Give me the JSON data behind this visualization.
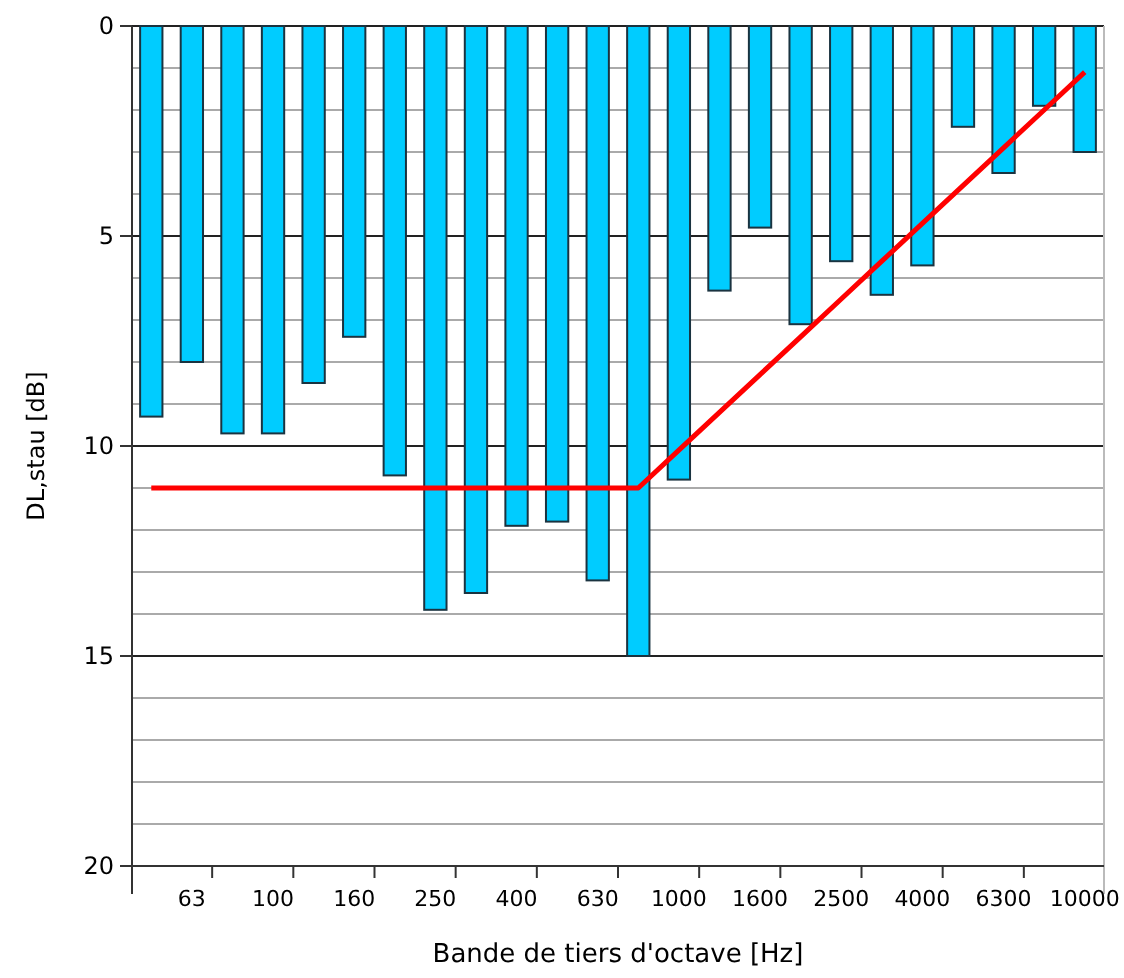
{
  "chart_data": {
    "type": "bar",
    "xlabel": "Bande de tiers d'octave [Hz]",
    "ylabel": "DL,stau [dB]",
    "categories": [
      null,
      "63",
      null,
      "100",
      null,
      "160",
      null,
      "250",
      null,
      "400",
      null,
      "630",
      null,
      "1000",
      null,
      "1600",
      null,
      "2500",
      null,
      "4000",
      null,
      "6300",
      null,
      "10000"
    ],
    "series": [
      {
        "color": "#00ccff",
        "values": [
          9.3,
          8.0,
          9.7,
          9.7,
          8.5,
          7.4,
          10.7,
          13.9,
          13.5,
          11.9,
          11.8,
          13.2,
          15.0,
          10.8,
          6.3,
          4.8,
          7.1,
          5.6,
          6.4,
          5.7,
          2.4,
          3.5,
          1.9,
          3.0
        ]
      },
      {
        "type": "line",
        "color": "#ff0000",
        "values": [
          11,
          11,
          11,
          11,
          11,
          11,
          11,
          11,
          11,
          11,
          11,
          11,
          11,
          10.1,
          9.2,
          8.3,
          7.4,
          6.5,
          5.6,
          4.7,
          3.8,
          2.9,
          2.0,
          1.1
        ]
      }
    ],
    "ylim": [
      20,
      0
    ],
    "yticks": [
      0,
      {
        "value": 1,
        "label": null
      },
      {
        "value": 2,
        "label": null
      },
      {
        "value": 3,
        "label": null
      },
      {
        "value": 4,
        "label": null
      },
      5,
      {
        "value": 6,
        "label": null
      },
      {
        "value": 7,
        "label": null
      },
      {
        "value": 8,
        "label": null
      },
      {
        "value": 9,
        "label": null
      },
      10,
      {
        "value": 11,
        "label": null
      },
      {
        "value": 12,
        "label": null
      },
      {
        "value": 13,
        "label": null
      },
      {
        "value": 14,
        "label": null
      },
      15,
      {
        "value": 16,
        "label": null
      },
      {
        "value": 17,
        "label": null
      },
      {
        "value": 18,
        "label": null
      },
      {
        "value": 19,
        "label": null
      },
      20
    ],
    "grid": true,
    "marker": "none",
    "line_style": "solid"
  }
}
